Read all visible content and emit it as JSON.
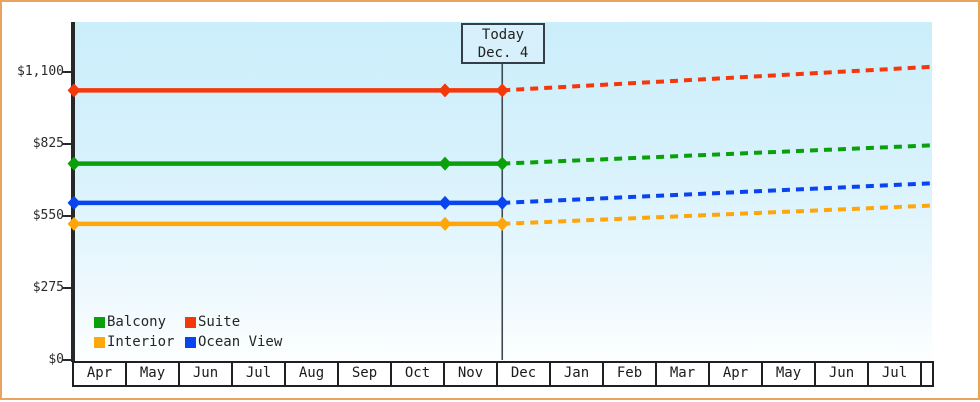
{
  "page": {
    "background_color": "#ffffff",
    "border_color": "#e9a45c"
  },
  "chart_data": {
    "type": "line",
    "title": "",
    "description_visible_text_only": "",
    "y_axis": {
      "ticks": [
        {
          "label": "$1,100",
          "value": 1100
        },
        {
          "label": "$825",
          "value": 825
        },
        {
          "label": "$550",
          "value": 550
        },
        {
          "label": "$275",
          "value": 275
        },
        {
          "label": "$0",
          "value": 0
        }
      ],
      "min": 0
    },
    "x_axis": {
      "months": [
        "Apr",
        "May",
        "Jun",
        "Jul",
        "Aug",
        "Sep",
        "Oct",
        "Nov",
        "Dec",
        "Jan",
        "Feb",
        "Mar",
        "Apr",
        "May",
        "Jun",
        "Jul"
      ]
    },
    "today": {
      "line1": "Today",
      "line2": "Dec. 4",
      "month_offset": 8.08
    },
    "history_marker_months": [
      0,
      7
    ],
    "series": [
      {
        "name": "Balcony",
        "color": "#0aa00a",
        "price_now": 750,
        "price_forecast_end": 820
      },
      {
        "name": "Suite",
        "color": "#f5380a",
        "price_now": 1030,
        "price_forecast_end": 1120
      },
      {
        "name": "Interior",
        "color": "#ffa60a",
        "price_now": 520,
        "price_forecast_end": 590
      },
      {
        "name": "Ocean View",
        "color": "#0a44ee",
        "price_now": 600,
        "price_forecast_end": 675
      }
    ],
    "line_styles": {
      "history": "solid",
      "forecast": "dashed"
    },
    "legend_position": "bottom-left",
    "plot_background_top": "#cbeefb",
    "plot_background_bottom": "#fdffff"
  }
}
